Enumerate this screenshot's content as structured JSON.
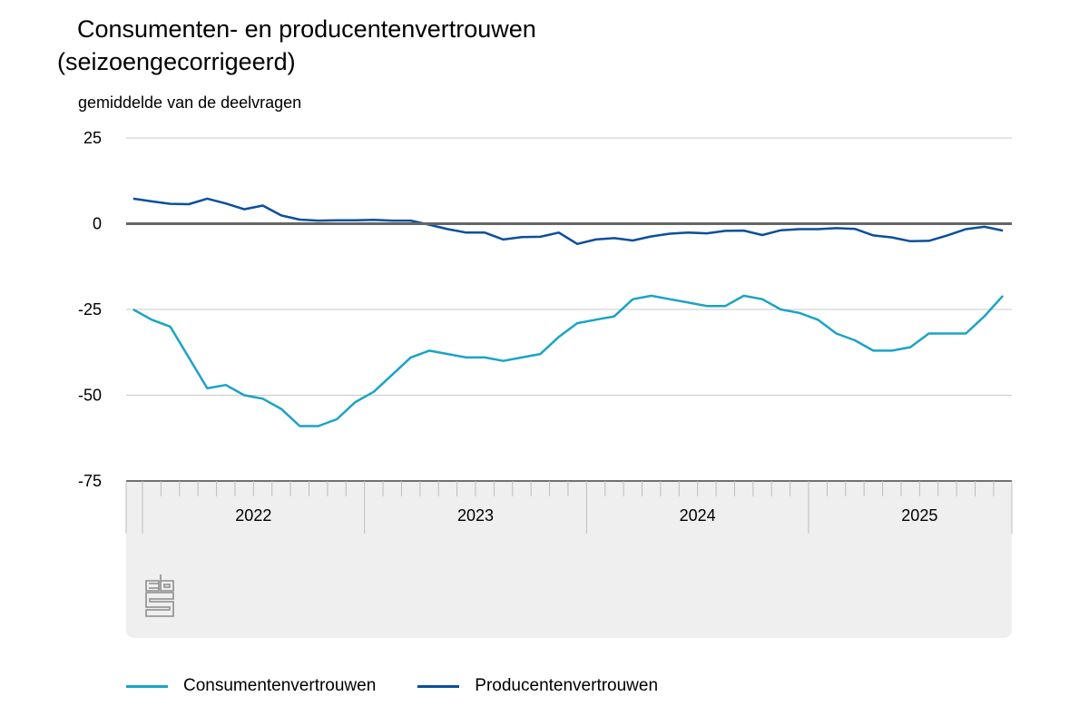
{
  "chart_data": {
    "type": "line",
    "title": "Consumenten- en producentenvertrouwen",
    "subtitle": "(seizoengecorrigeerd)",
    "ylabel": "gemiddelde van de deelvragen",
    "xlabel": "",
    "ylim": [
      -75,
      25
    ],
    "yticks": [
      "25",
      "0",
      "-25",
      "-50",
      "-75"
    ],
    "ytick_values": [
      25,
      0,
      -25,
      -50,
      -75
    ],
    "year_labels": [
      "2022",
      "2023",
      "2024",
      "2025"
    ],
    "x": [
      "2021-12",
      "2022-01",
      "2022-02",
      "2022-03",
      "2022-04",
      "2022-05",
      "2022-06",
      "2022-07",
      "2022-08",
      "2022-09",
      "2022-10",
      "2022-11",
      "2022-12",
      "2023-01",
      "2023-02",
      "2023-03",
      "2023-04",
      "2023-05",
      "2023-06",
      "2023-07",
      "2023-08",
      "2023-09",
      "2023-10",
      "2023-11",
      "2023-12",
      "2024-01",
      "2024-02",
      "2024-03",
      "2024-04",
      "2024-05",
      "2024-06",
      "2024-07",
      "2024-08",
      "2024-09",
      "2024-10",
      "2024-11",
      "2024-12",
      "2025-01",
      "2025-02",
      "2025-03",
      "2025-04",
      "2025-05",
      "2025-06",
      "2025-07",
      "2025-08",
      "2025-09",
      "2025-10",
      "2025-11"
    ],
    "grid": true,
    "legend_position": "bottom",
    "series": [
      {
        "name": "Consumentenvertrouwen",
        "color": "#1ba3c6",
        "values": [
          -25,
          -28,
          -30,
          -39,
          -48,
          -47,
          -50,
          -51,
          -54,
          -59,
          -59,
          -57,
          -52,
          -49,
          -44,
          -39,
          -37,
          -38,
          -39,
          -39,
          -40,
          -39,
          -38,
          -33,
          -29,
          -28,
          -27,
          -22,
          -21,
          -22,
          -23,
          -24,
          -24,
          -21,
          -22,
          -25,
          -26,
          -28,
          -32,
          -34,
          -37,
          -37,
          -36,
          -32,
          -32,
          -32,
          -27,
          -21
        ]
      },
      {
        "name": "Producentenvertrouwen",
        "color": "#0b4f9c",
        "values": [
          7.3,
          6.5,
          5.8,
          5.7,
          7.3,
          5.9,
          4.2,
          5.3,
          2.4,
          1.2,
          0.9,
          1.0,
          1.0,
          1.1,
          0.9,
          0.9,
          -0.3,
          -1.6,
          -2.6,
          -2.6,
          -4.6,
          -3.9,
          -3.8,
          -2.6,
          -5.9,
          -4.6,
          -4.2,
          -4.9,
          -3.7,
          -2.9,
          -2.6,
          -2.8,
          -2.1,
          -2.0,
          -3.3,
          -1.9,
          -1.6,
          -1.6,
          -1.3,
          -1.5,
          -3.4,
          -4.0,
          -5.1,
          -5.0,
          -3.4,
          -1.6,
          -0.9,
          -2.0
        ]
      }
    ]
  },
  "logo": "cbs"
}
